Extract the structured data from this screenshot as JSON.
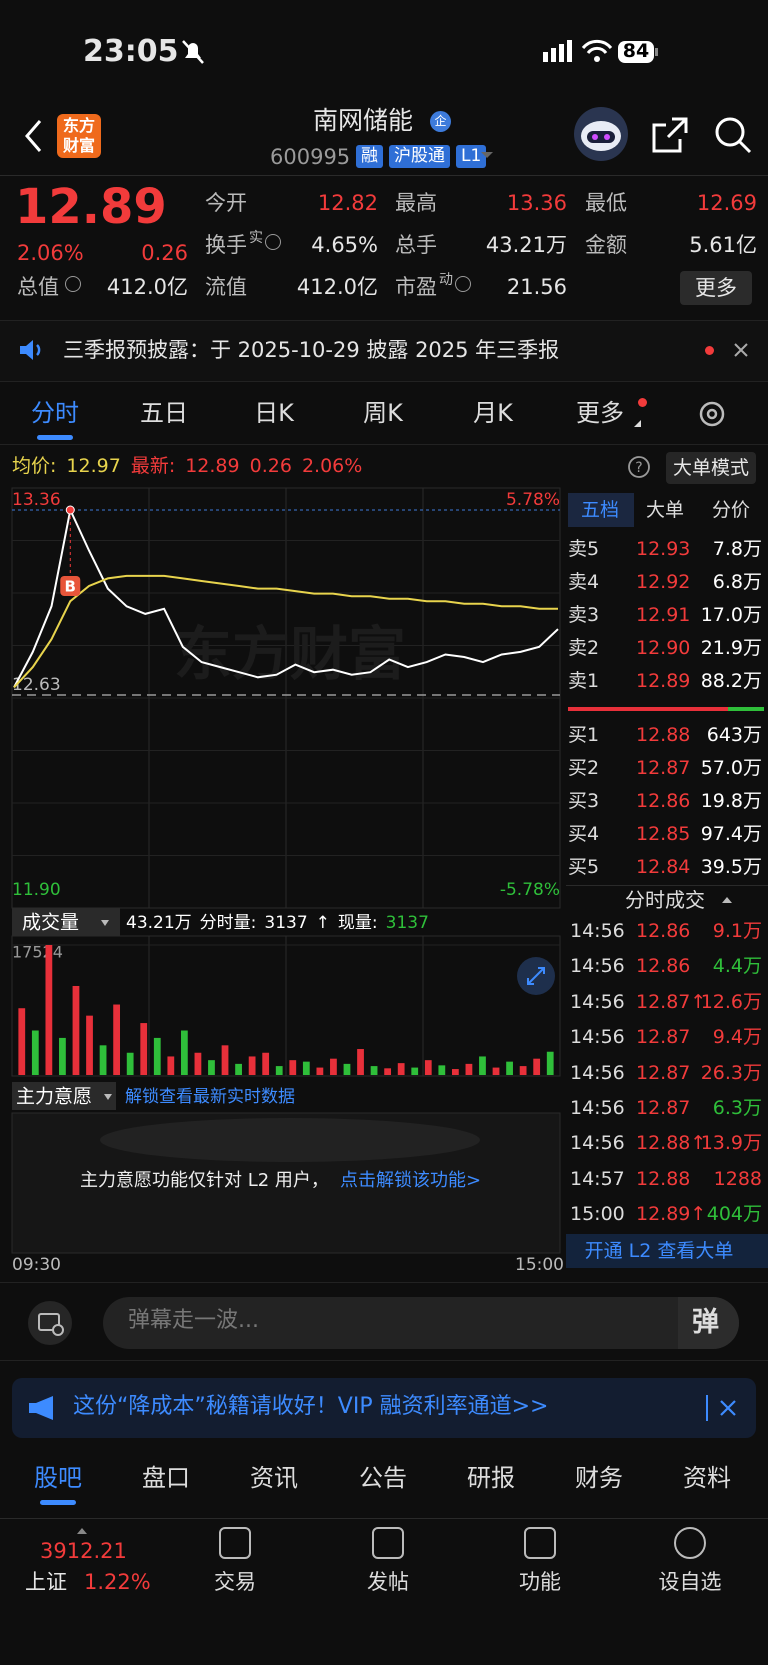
{
  "status": {
    "time": "23:05",
    "battery": "84"
  },
  "header": {
    "logo": "东方财富",
    "title": "南网储能",
    "badge": "企",
    "code": "600995",
    "tags": [
      "融",
      "沪股通",
      "L1"
    ]
  },
  "quote": {
    "price": "12.89",
    "change_pct": "2.06%",
    "change": "0.26",
    "more": "更多",
    "fields": [
      {
        "label": "今开",
        "value": "12.82",
        "color": "#f23b3b"
      },
      {
        "label": "最高",
        "value": "13.36",
        "color": "#f23b3b"
      },
      {
        "label": "最低",
        "value": "12.69",
        "color": "#f23b3b"
      },
      {
        "label": "换手",
        "sup": "实",
        "icon": true,
        "value": "4.65%",
        "color": "#e6e6e6"
      },
      {
        "label": "总手",
        "value": "43.21万",
        "color": "#e6e6e6"
      },
      {
        "label": "金额",
        "value": "5.61亿",
        "color": "#e6e6e6"
      },
      {
        "label": "总值",
        "icon": true,
        "value": "412.0亿",
        "color": "#e6e6e6"
      },
      {
        "label": "流值",
        "value": "412.0亿",
        "color": "#e6e6e6"
      },
      {
        "label": "市盈",
        "sup": "动",
        "icon": true,
        "value": "21.56",
        "color": "#e6e6e6"
      }
    ]
  },
  "notice": "三季报预披露：于 2025-10-29 披露 2025 年三季报",
  "tabs": {
    "items": [
      "分时",
      "五日",
      "日K",
      "周K",
      "月K",
      "更多"
    ],
    "active": 0
  },
  "chart_info": {
    "avg_label": "均价:",
    "avg": "12.97",
    "last_label": "最新:",
    "last": "12.89",
    "change": "0.26",
    "pct": "2.06%",
    "mode": "大单模式"
  },
  "chart_data": [
    {
      "type": "line",
      "annotation": "B",
      "ylim": [
        11.9,
        13.36
      ],
      "yticks": [
        13.36,
        12.63,
        {
          "value": 11.9,
          "label": "11.90"
        }
      ],
      "y2lim": [
        -5.78,
        5.78
      ],
      "y2ticks": [
        {
          "value": 5.78,
          "label": "5.78%"
        },
        {
          "value": -5.78,
          "label": "-5.78%"
        }
      ],
      "x_labels": [
        "09:30",
        "15:00"
      ],
      "series": [
        {
          "color": "#ffffff",
          "values": [
            12.66,
            12.8,
            12.98,
            13.36,
            13.2,
            13.05,
            12.98,
            12.95,
            12.97,
            12.82,
            12.76,
            12.74,
            12.72,
            12.7,
            12.71,
            12.75,
            12.72,
            12.73,
            12.71,
            12.72,
            12.77,
            12.74,
            12.76,
            12.79,
            12.78,
            12.76,
            12.79,
            12.8,
            12.82,
            12.89
          ]
        },
        {
          "color": "#e8d44d",
          "values": [
            12.66,
            12.74,
            12.85,
            13.0,
            13.06,
            13.09,
            13.1,
            13.1,
            13.1,
            13.09,
            13.08,
            13.07,
            13.06,
            13.05,
            13.05,
            13.04,
            13.03,
            13.03,
            13.02,
            13.02,
            13.01,
            13.01,
            13.0,
            13.0,
            12.99,
            12.99,
            12.98,
            12.98,
            12.97,
            12.97
          ]
        }
      ]
    },
    {
      "type": "bar",
      "title": "成交量",
      "total": "43.21万",
      "period_label": "分时量:",
      "period": "3137",
      "arrow": "↑",
      "now_label": "现量:",
      "now": "3137",
      "ylim": [
        0,
        17524
      ],
      "yticks": [
        17524
      ],
      "values": [
        9000,
        6000,
        17524,
        5000,
        12000,
        8000,
        4000,
        9500,
        3000,
        7000,
        5000,
        2500,
        6000,
        3000,
        2000,
        4000,
        1500,
        2500,
        3000,
        1200,
        2000,
        1800,
        1000,
        2200,
        1500,
        3500,
        1200,
        900,
        1600,
        1000,
        2000,
        1300,
        800,
        1500,
        2500,
        1000,
        1800,
        1200,
        2200,
        3137
      ],
      "colors": [
        "#e8303a",
        "#2fbf3a",
        "#e8303a",
        "#2fbf3a",
        "#e8303a",
        "#e8303a",
        "#2fbf3a",
        "#e8303a",
        "#2fbf3a",
        "#e8303a",
        "#2fbf3a",
        "#e8303a",
        "#2fbf3a",
        "#e8303a",
        "#2fbf3a",
        "#e8303a",
        "#2fbf3a",
        "#e8303a",
        "#e8303a",
        "#2fbf3a",
        "#e8303a",
        "#2fbf3a",
        "#e8303a",
        "#e8303a",
        "#2fbf3a",
        "#e8303a",
        "#2fbf3a",
        "#e8303a",
        "#e8303a",
        "#2fbf3a",
        "#e8303a",
        "#2fbf3a",
        "#e8303a",
        "#e8303a",
        "#2fbf3a",
        "#e8303a",
        "#2fbf3a",
        "#e8303a",
        "#e8303a",
        "#2fbf3a"
      ]
    }
  ],
  "main_force": {
    "title": "主力意愿",
    "link": "解锁查看最新实时数据",
    "message": "主力意愿功能仅针对 L2 用户，",
    "action": "点击解锁该功能>"
  },
  "order_book": {
    "tabs": [
      "五档",
      "大单",
      "分价"
    ],
    "asks": [
      {
        "label": "卖5",
        "price": "12.93",
        "volume": "7.8万"
      },
      {
        "label": "卖4",
        "price": "12.92",
        "volume": "6.8万"
      },
      {
        "label": "卖3",
        "price": "12.91",
        "volume": "17.0万"
      },
      {
        "label": "卖2",
        "price": "12.90",
        "volume": "21.9万"
      },
      {
        "label": "卖1",
        "price": "12.89",
        "volume": "88.2万"
      }
    ],
    "bids": [
      {
        "label": "买1",
        "price": "12.88",
        "volume": "643万"
      },
      {
        "label": "买2",
        "price": "12.87",
        "volume": "57.0万"
      },
      {
        "label": "买3",
        "price": "12.86",
        "volume": "19.8万"
      },
      {
        "label": "买4",
        "price": "12.85",
        "volume": "97.4万"
      },
      {
        "label": "买5",
        "price": "12.84",
        "volume": "39.5万"
      }
    ]
  },
  "trades": {
    "title": "分时成交",
    "footer": "开通 L2 查看大单",
    "rows": [
      {
        "time": "14:56",
        "price": "12.86",
        "volume": "9.1万",
        "side": "buy"
      },
      {
        "time": "14:56",
        "price": "12.86",
        "volume": "4.4万",
        "side": "sell"
      },
      {
        "time": "14:56",
        "price": "12.87↑",
        "volume": "12.6万",
        "side": "buy"
      },
      {
        "time": "14:56",
        "price": "12.87",
        "volume": "9.4万",
        "side": "buy"
      },
      {
        "time": "14:56",
        "price": "12.87",
        "volume": "26.3万",
        "side": "buy"
      },
      {
        "time": "14:56",
        "price": "12.87",
        "volume": "6.3万",
        "side": "sell"
      },
      {
        "time": "14:56",
        "price": "12.88↑",
        "volume": "13.9万",
        "side": "buy"
      },
      {
        "time": "14:57",
        "price": "12.88",
        "volume": "1288",
        "side": "buy"
      },
      {
        "time": "15:00",
        "price": "12.89↑",
        "volume": "404万",
        "side": "sell"
      }
    ]
  },
  "danmu": {
    "placeholder": "弹幕走一波...",
    "button": "弹"
  },
  "banner": "这份“降成本”秘籍请收好！VIP 融资利率通道>>",
  "bottom_tabs": {
    "items": [
      "股吧",
      "盘口",
      "资讯",
      "公告",
      "研报",
      "财务",
      "资料"
    ],
    "active": 0
  },
  "bottom_nav": {
    "index_value": "3912.21",
    "index_name": "上证",
    "index_pct": "1.22%",
    "items": [
      "交易",
      "发帖",
      "功能",
      "设自选"
    ]
  }
}
